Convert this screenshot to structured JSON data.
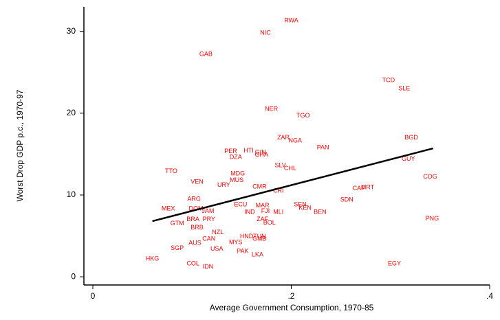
{
  "chart_data": {
    "type": "scatter",
    "x_label": "Average Government Consumption, 1970-85",
    "y_label": "Worst Drop GDP p.c., 1970-97",
    "xlim": [
      -0.009,
      0.4
    ],
    "ylim": [
      -1,
      33
    ],
    "xticks": [
      0,
      {
        "value": 0.2,
        "label": ".2"
      },
      {
        "value": 0.4,
        "label": ".4"
      }
    ],
    "yticks": [
      0,
      10,
      20,
      30
    ],
    "series": [
      {
        "color": "#ff0000",
        "labels": [
          "RWA",
          "NIC",
          "GAB",
          "TCD",
          "SLE",
          "NER",
          "TGO",
          "BGD",
          "ZAR",
          "NGA",
          "PAN",
          "PER",
          "HTI",
          "GIN",
          "GHA",
          "DZA",
          "GUY",
          "TTO",
          "SLV",
          "CHL",
          "MDG",
          "MUS",
          "VEN",
          "URY",
          "COG",
          "CMR",
          "CRI",
          "CAF",
          "MRT",
          "SDN",
          "ARG",
          "MEX",
          "DOM",
          "JAM",
          "ECU",
          "MAR",
          "SEN",
          "KEN",
          "BEN",
          "IND",
          "FJI",
          "MLI",
          "GTM",
          "BRA",
          "PRY",
          "BRB",
          "ZAF",
          "BOL",
          "PNG",
          "NZL",
          "HND",
          "TUN",
          "GMB",
          "CAN",
          "AUS",
          "MYS",
          "SGP",
          "USA",
          "PAK",
          "LKA",
          "HKG",
          "COL",
          "IDN",
          "EGY"
        ],
        "x": [
          0.2,
          0.174,
          0.114,
          0.298,
          0.314,
          0.18,
          0.212,
          0.321,
          0.192,
          0.204,
          0.232,
          0.139,
          0.157,
          0.169,
          0.17,
          0.144,
          0.318,
          0.079,
          0.189,
          0.199,
          0.146,
          0.145,
          0.105,
          0.132,
          0.34,
          0.168,
          0.187,
          0.268,
          0.277,
          0.256,
          0.102,
          0.076,
          0.104,
          0.116,
          0.149,
          0.171,
          0.209,
          0.214,
          0.229,
          0.158,
          0.174,
          0.187,
          0.085,
          0.101,
          0.117,
          0.105,
          0.171,
          0.178,
          0.342,
          0.126,
          0.155,
          0.168,
          0.168,
          0.117,
          0.103,
          0.144,
          0.085,
          0.125,
          0.151,
          0.166,
          0.06,
          0.101,
          0.116,
          0.304
        ],
        "values": [
          31.3,
          29.8,
          27.2,
          24.0,
          23.0,
          20.5,
          19.7,
          17.0,
          17.0,
          16.6,
          15.8,
          15.3,
          15.4,
          15.2,
          14.9,
          14.6,
          14.4,
          12.9,
          13.6,
          13.2,
          12.6,
          11.8,
          11.6,
          11.2,
          12.2,
          11.0,
          10.5,
          10.8,
          10.9,
          9.4,
          9.5,
          8.3,
          8.3,
          8.0,
          8.8,
          8.7,
          8.8,
          8.4,
          7.9,
          7.9,
          8.0,
          7.9,
          6.5,
          7.0,
          7.0,
          6.0,
          7.0,
          6.6,
          7.1,
          5.4,
          4.9,
          4.9,
          4.6,
          4.6,
          4.1,
          4.2,
          3.5,
          3.4,
          3.1,
          2.7,
          2.2,
          1.6,
          1.2,
          1.6
        ]
      },
      {
        "type": "line",
        "color": "#000000",
        "x": [
          0.06,
          0.343
        ],
        "values": [
          6.8,
          15.7
        ]
      }
    ]
  }
}
